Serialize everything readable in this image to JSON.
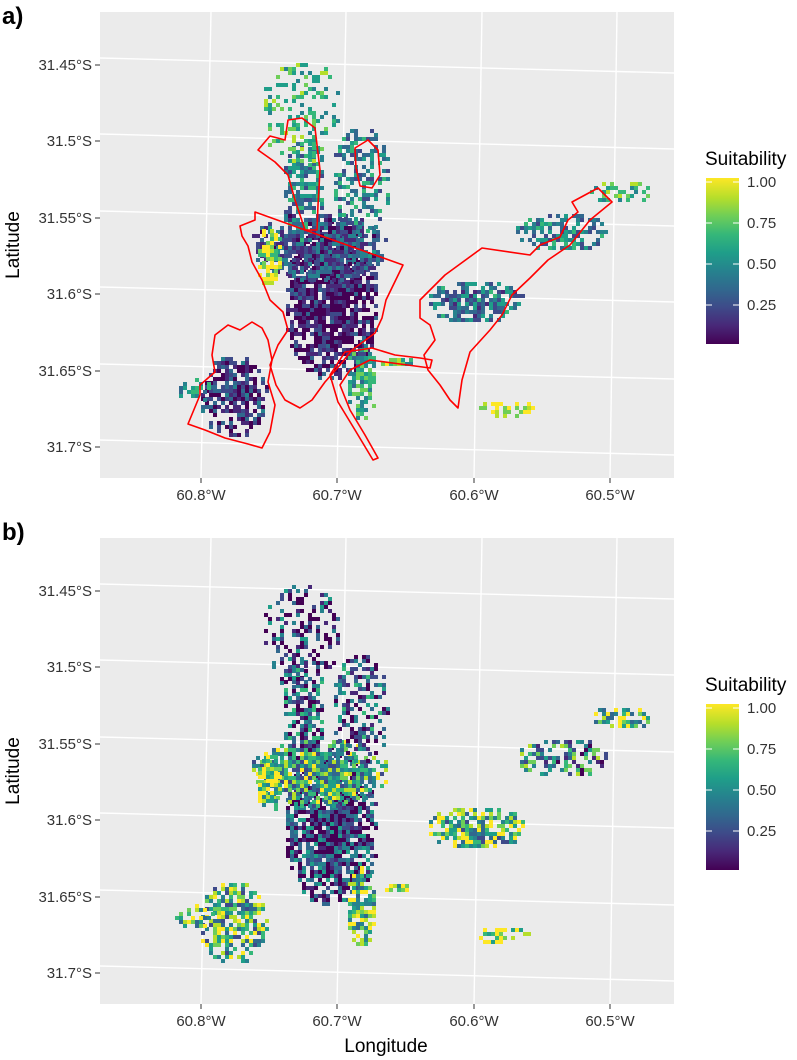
{
  "panels": [
    {
      "letter": "a)",
      "y_tick_labels": [
        "31.45°S",
        "31.5°S",
        "31.55°S",
        "31.6°S",
        "31.65°S",
        "31.7°S"
      ],
      "x_tick_labels": [
        "60.8°W",
        "60.7°W",
        "60.6°W",
        "60.5°W"
      ],
      "ylabel": "Latitude",
      "legend": {
        "title": "Suitability",
        "ticks": [
          "1.00",
          "0.75",
          "0.50",
          "0.25"
        ]
      },
      "pattern": "a"
    },
    {
      "letter": "b)",
      "y_tick_labels": [
        "31.45°S",
        "31.5°S",
        "31.55°S",
        "31.6°S",
        "31.65°S",
        "31.7°S"
      ],
      "x_tick_labels": [
        "60.8°W",
        "60.7°W",
        "60.6°W",
        "60.5°W"
      ],
      "ylabel": "Latitude",
      "legend": {
        "title": "Suitability",
        "ticks": [
          "1.00",
          "0.75",
          "0.50",
          "0.25"
        ]
      },
      "pattern": "b"
    }
  ],
  "xlabel": "Longitude",
  "colors": {
    "panel_bg": "#ebebeb",
    "grid": "#ffffff",
    "boundary": "#ff0000",
    "viridis": [
      "#440154",
      "#482878",
      "#3e4a89",
      "#31688e",
      "#26828e",
      "#1f9e89",
      "#35b779",
      "#6ece58",
      "#b5de2b",
      "#fde725"
    ]
  }
}
